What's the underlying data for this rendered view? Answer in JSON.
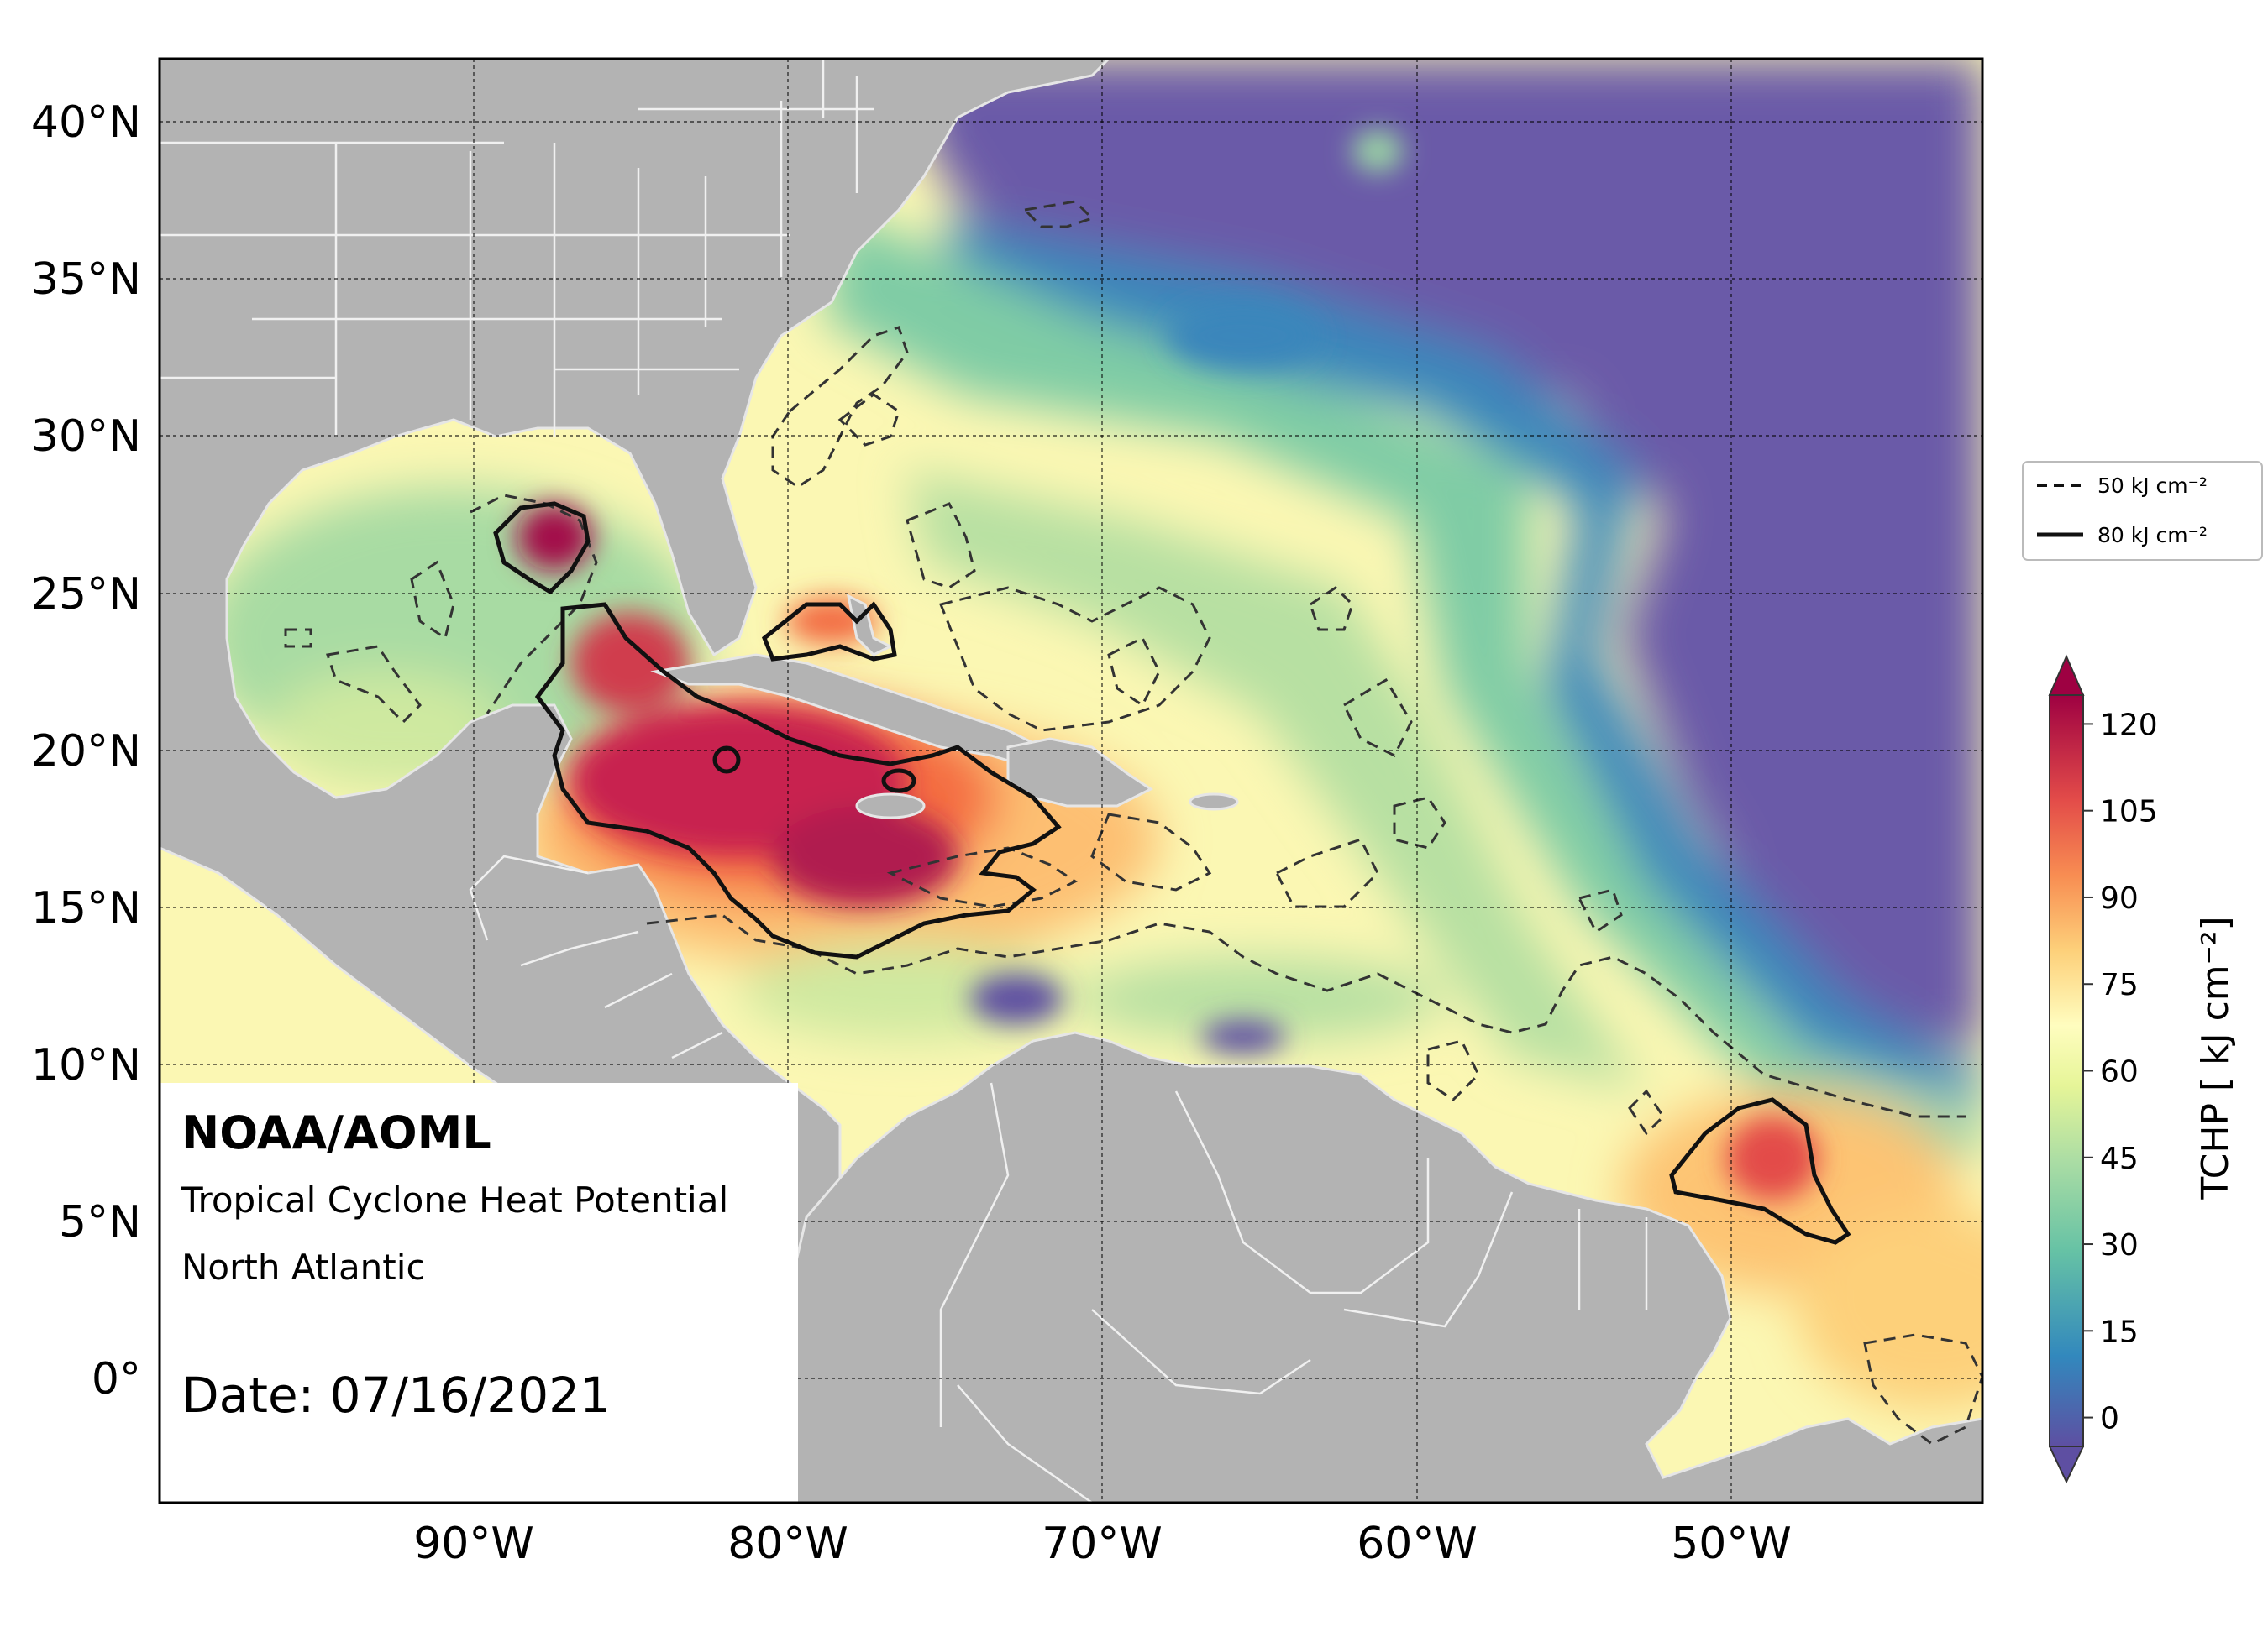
{
  "info": {
    "org": "NOAA/AOML",
    "product": "Tropical Cyclone Heat Potential",
    "region": "North Atlantic",
    "date": "Date: 07/16/2021"
  },
  "axes": {
    "lat_ticks": [
      "40°N",
      "35°N",
      "30°N",
      "25°N",
      "20°N",
      "15°N",
      "10°N",
      "5°N",
      "0°"
    ],
    "lon_ticks": [
      "90°W",
      "80°W",
      "70°W",
      "60°W",
      "50°W"
    ],
    "lat_range": [
      -4,
      42
    ],
    "lon_range": [
      -100,
      -42
    ]
  },
  "colorbar": {
    "label": "TCHP [ kJ cm⁻²]",
    "ticks": [
      "120",
      "105",
      "90",
      "75",
      "60",
      "45",
      "30",
      "15",
      "0"
    ],
    "range": [
      -5,
      125
    ],
    "colors": [
      "#5e4fa2",
      "#4263ab",
      "#3288bd",
      "#4ca7b1",
      "#66c2a5",
      "#8bd1a4",
      "#abdda4",
      "#cbeaa0",
      "#e6f598",
      "#f4f8b0",
      "#fee08b",
      "#fdc473",
      "#fdae61",
      "#f88d52",
      "#f46d43",
      "#e34c49",
      "#d53e4f",
      "#b81a4f",
      "#9e0142"
    ]
  },
  "legend": {
    "items": [
      {
        "label": "50 kJ cm⁻²",
        "style": "dashed"
      },
      {
        "label": "80 kJ cm⁻²",
        "style": "solid"
      }
    ]
  },
  "colors": {
    "land": "#b3b3b3",
    "deep_ocean": "#5e4fa2",
    "peak": "#9e0142"
  }
}
